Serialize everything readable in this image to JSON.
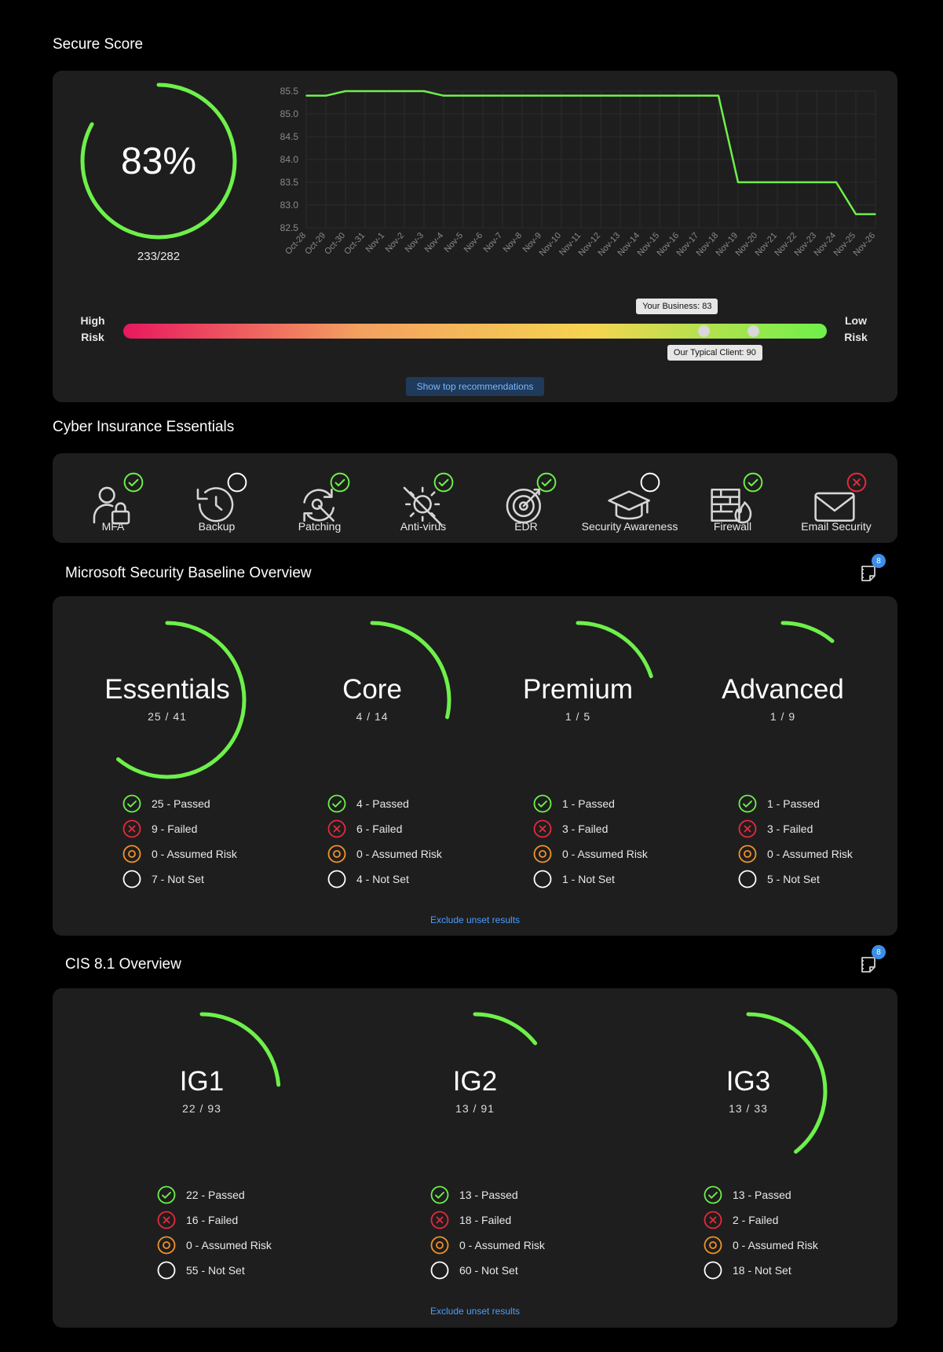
{
  "secure_score": {
    "title": "Secure Score",
    "percent": 83,
    "percent_label": "83%",
    "fraction_label": "233/282",
    "accent_color": "#6ef04a",
    "risk_bar": {
      "high_label": "High\nRisk",
      "low_label": "Low\nRisk",
      "your_business_label": "Your Business: 83",
      "your_business_value": 83,
      "typical_client_label": "Our Typical Client: 90",
      "typical_client_value": 90,
      "gradient_colors": [
        "#e8185f",
        "#f3a060",
        "#f5d451",
        "#6ef04a"
      ]
    },
    "recommendations_button": "Show top recommendations"
  },
  "chart_data": {
    "type": "line",
    "x": [
      "Oct-28",
      "Oct-29",
      "Oct-30",
      "Oct-31",
      "Nov-1",
      "Nov-2",
      "Nov-3",
      "Nov-4",
      "Nov-5",
      "Nov-6",
      "Nov-7",
      "Nov-8",
      "Nov-9",
      "Nov-10",
      "Nov-11",
      "Nov-12",
      "Nov-13",
      "Nov-14",
      "Nov-15",
      "Nov-16",
      "Nov-17",
      "Nov-18",
      "Nov-19",
      "Nov-20",
      "Nov-21",
      "Nov-22",
      "Nov-23",
      "Nov-24",
      "Nov-25",
      "Nov-26"
    ],
    "series": [
      {
        "values": [
          85.4,
          85.4,
          85.5,
          85.5,
          85.5,
          85.5,
          85.5,
          85.4,
          85.4,
          85.4,
          85.4,
          85.4,
          85.4,
          85.4,
          85.4,
          85.4,
          85.4,
          85.4,
          85.4,
          85.4,
          85.4,
          85.4,
          83.5,
          83.5,
          83.5,
          83.5,
          83.5,
          83.5,
          82.8,
          82.8
        ]
      }
    ],
    "yticks": [
      "85.5",
      "85.0",
      "84.5",
      "84.0",
      "83.5",
      "83.0",
      "82.5"
    ],
    "ylim": [
      82.5,
      85.5
    ],
    "grid": true,
    "line_color": "#6ef04a"
  },
  "cyber_insurance": {
    "title": "Cyber Insurance Essentials",
    "items": [
      {
        "label": "MFA",
        "icon": "mfa-user-lock-icon",
        "status": "passed"
      },
      {
        "label": "Backup",
        "icon": "backup-clock-icon",
        "status": "unset"
      },
      {
        "label": "Patching",
        "icon": "patching-wrench-icon",
        "status": "passed"
      },
      {
        "label": "Anti-virus",
        "icon": "anti-virus-icon",
        "status": "passed"
      },
      {
        "label": "EDR",
        "icon": "edr-radar-icon",
        "status": "passed"
      },
      {
        "label": "Security Awareness",
        "icon": "graduation-cap-icon",
        "status": "unset"
      },
      {
        "label": "Firewall",
        "icon": "firewall-icon",
        "status": "passed"
      },
      {
        "label": "Email Security",
        "icon": "envelope-icon",
        "status": "failed"
      }
    ]
  },
  "ms_baseline": {
    "title": "Microsoft Security Baseline Overview",
    "badge": "8",
    "exclude_link": "Exclude unset results",
    "columns": [
      {
        "name": "Essentials",
        "count": "25 / 41",
        "fraction": 0.6098,
        "passed": "25 - Passed",
        "failed": "9 - Failed",
        "assumed": "0 - Assumed Risk",
        "notset": "7 - Not Set"
      },
      {
        "name": "Core",
        "count": "4 / 14",
        "fraction": 0.2857,
        "passed": "4 - Passed",
        "failed": "6 - Failed",
        "assumed": "0 - Assumed Risk",
        "notset": "4 - Not Set"
      },
      {
        "name": "Premium",
        "count": "1 / 5",
        "fraction": 0.2,
        "passed": "1 - Passed",
        "failed": "3 - Failed",
        "assumed": "0 - Assumed Risk",
        "notset": "1 - Not Set"
      },
      {
        "name": "Advanced",
        "count": "1 / 9",
        "fraction": 0.1111,
        "passed": "1 - Passed",
        "failed": "3 - Failed",
        "assumed": "0 - Assumed Risk",
        "notset": "5 - Not Set"
      }
    ]
  },
  "cis": {
    "title": "CIS 8.1 Overview",
    "badge": "8",
    "exclude_link": "Exclude unset results",
    "columns": [
      {
        "name": "IG1",
        "count": "22 / 93",
        "fraction": 0.2366,
        "passed": "22 - Passed",
        "failed": "16 - Failed",
        "assumed": "0 - Assumed Risk",
        "notset": "55 - Not Set"
      },
      {
        "name": "IG2",
        "count": "13 / 91",
        "fraction": 0.1429,
        "passed": "13 - Passed",
        "failed": "18 - Failed",
        "assumed": "0 - Assumed Risk",
        "notset": "60 - Not Set"
      },
      {
        "name": "IG3",
        "count": "13 / 33",
        "fraction": 0.3939,
        "passed": "13 - Passed",
        "failed": "2 - Failed",
        "assumed": "0 - Assumed Risk",
        "notset": "18 - Not Set"
      }
    ]
  },
  "colors": {
    "passed": "#6ef04a",
    "failed": "#e8283c",
    "assumed": "#f0922a",
    "notset": "#ffffff"
  }
}
